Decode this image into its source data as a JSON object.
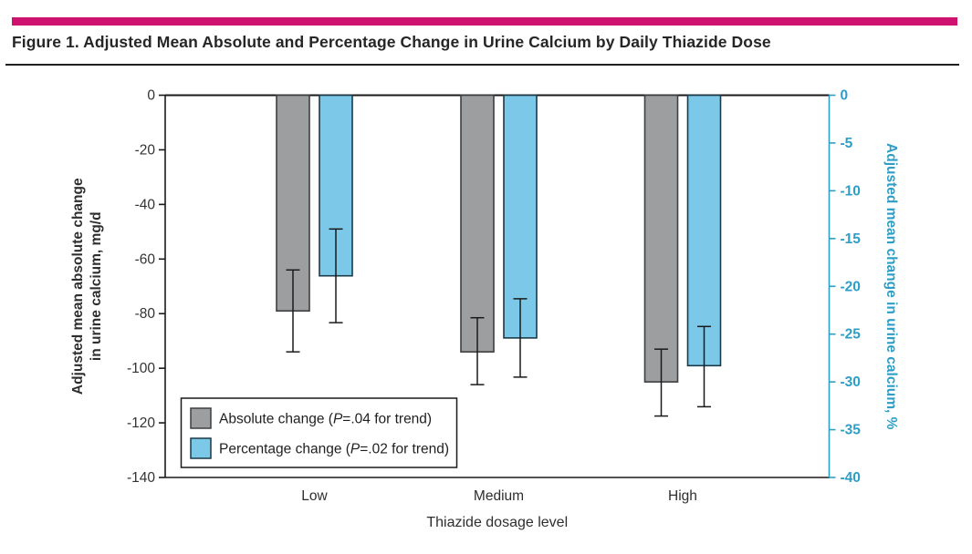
{
  "figure": {
    "title": "Figure 1. Adjusted Mean Absolute and Percentage Change in Urine Calcium by Daily Thiazide Dose",
    "accent_color": "#CE1270"
  },
  "chart_data": {
    "type": "bar",
    "categories": [
      "Low",
      "Medium",
      "High"
    ],
    "xlabel": "Thiazide dosage level",
    "grid": "off",
    "legend_position": "inside-bottom-left",
    "left_axis": {
      "label_line1": "Adjusted mean absolute change",
      "label_line2": "in urine calcium, mg/d",
      "ticks": [
        0,
        -20,
        -40,
        -60,
        -80,
        -100,
        -120,
        -140
      ],
      "range": [
        0,
        -140
      ],
      "color": "#1A1A1A",
      "text_color": "#333333"
    },
    "right_axis": {
      "label": "Adjusted mean change in urine calcium, %",
      "ticks": [
        0,
        -5,
        -10,
        -15,
        -20,
        -25,
        -30,
        -35,
        -40
      ],
      "range": [
        0,
        -40
      ],
      "color": "#2F9EC7"
    },
    "series": [
      {
        "name": "Absolute change",
        "axis": "left",
        "unit": "mg/d",
        "fill": "#9C9EA0",
        "stroke": "#3D3E40",
        "legend_pre": "Absolute change (",
        "legend_p": "P",
        "legend_post": "=.04 for trend)",
        "values": [
          -79,
          -94,
          -105
        ],
        "ci_high": [
          -64,
          -81.5,
          -93
        ],
        "ci_low": [
          -94,
          -106,
          -117.5
        ]
      },
      {
        "name": "Percentage change",
        "axis": "right",
        "unit": "%",
        "fill": "#7CC8E8",
        "stroke": "#1C3A49",
        "legend_pre": "Percentage change (",
        "legend_p": "P",
        "legend_post": "=.02 for trend)",
        "values": [
          -18.9,
          -25.4,
          -28.3
        ],
        "ci_high": [
          -14,
          -21.3,
          -24.2
        ],
        "ci_low": [
          -23.8,
          -29.5,
          -32.6
        ]
      }
    ]
  }
}
